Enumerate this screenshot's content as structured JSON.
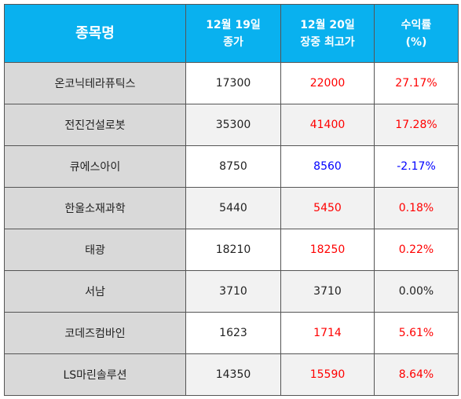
{
  "header": {
    "name": "종목명",
    "close_date": "12월 19일",
    "close_label": "종가",
    "high_date": "12월 20일",
    "high_label": "장중 최고가",
    "return_label": "수익률",
    "return_unit": "(%)"
  },
  "colors": {
    "header_bg": "#09b1ef",
    "up": "#ff0000",
    "down": "#0000ff"
  },
  "rows": [
    {
      "name": "온코닉테라퓨틱스",
      "close": "17300",
      "high": "22000",
      "return": "27.17%",
      "direction": "up"
    },
    {
      "name": "전진건설로봇",
      "close": "35300",
      "high": "41400",
      "return": "17.28%",
      "direction": "up"
    },
    {
      "name": "큐에스아이",
      "close": "8750",
      "high": "8560",
      "return": "-2.17%",
      "direction": "down"
    },
    {
      "name": "한울소재과학",
      "close": "5440",
      "high": "5450",
      "return": "0.18%",
      "direction": "up"
    },
    {
      "name": "태광",
      "close": "18210",
      "high": "18250",
      "return": "0.22%",
      "direction": "up"
    },
    {
      "name": "서남",
      "close": "3710",
      "high": "3710",
      "return": "0.00%",
      "direction": "flat"
    },
    {
      "name": "코데즈컴바인",
      "close": "1623",
      "high": "1714",
      "return": "5.61%",
      "direction": "up"
    },
    {
      "name": "LS마린솔루션",
      "close": "14350",
      "high": "15590",
      "return": "8.64%",
      "direction": "up"
    }
  ]
}
